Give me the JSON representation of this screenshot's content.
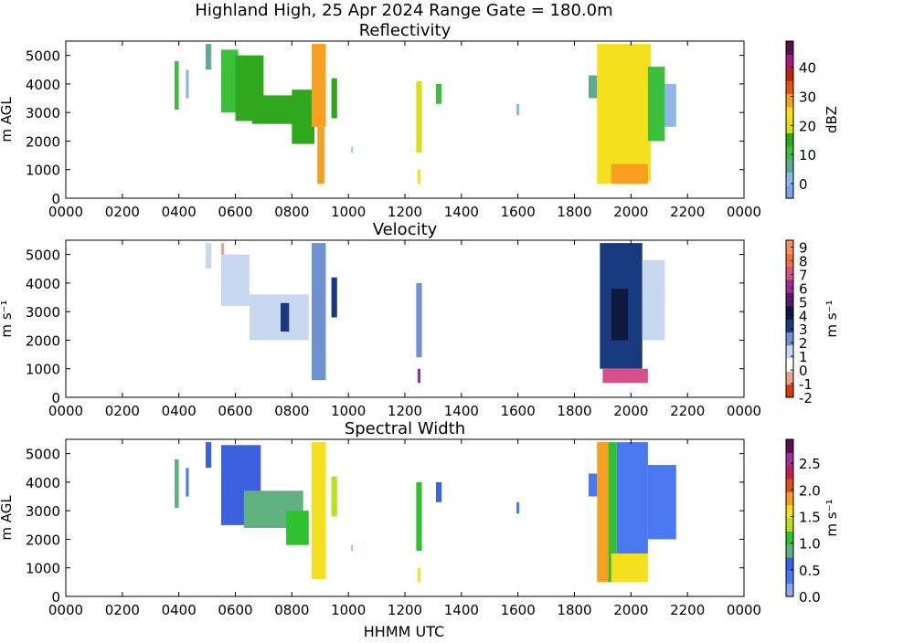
{
  "figure": {
    "suptitle": "Highland High, 25 Apr 2024 Range Gate = 180.0m",
    "xlabel": "HHMM UTC",
    "xticks": [
      "0000",
      "0200",
      "0400",
      "0600",
      "0800",
      "1000",
      "1200",
      "1400",
      "1600",
      "1800",
      "2000",
      "2200",
      "0000"
    ]
  },
  "chart_data": [
    {
      "type": "heatmap",
      "title": "Reflectivity",
      "ylabel": "m AGL",
      "xlim": [
        0,
        24
      ],
      "ylim": [
        0,
        5500
      ],
      "yticks": [
        "0",
        "1000",
        "2000",
        "3000",
        "4000",
        "5000"
      ],
      "colorbar": {
        "label": "dBZ",
        "range": [
          -5,
          49
        ],
        "ticks": [
          {
            "v": 0,
            "t": "0"
          },
          {
            "v": 10,
            "t": "10"
          },
          {
            "v": 20,
            "t": "20"
          },
          {
            "v": 30,
            "t": "30"
          },
          {
            "v": 40,
            "t": "40"
          }
        ],
        "colors": [
          "#7da3f0",
          "#8fb6e6",
          "#5fa89a",
          "#3cbf3c",
          "#2fa81e",
          "#d8e01a",
          "#f5e020",
          "#f7a020",
          "#e8501a",
          "#c02010",
          "#a01a80",
          "#5a1050"
        ]
      },
      "blobs": [
        {
          "t0": 3.85,
          "t1": 4.0,
          "h0": 3100,
          "h1": 4800,
          "v": 10
        },
        {
          "t0": 4.25,
          "t1": 4.35,
          "h0": 3500,
          "h1": 4500,
          "v": 0
        },
        {
          "t0": 4.95,
          "t1": 5.15,
          "h0": 4500,
          "h1": 5400,
          "v": 8
        },
        {
          "t0": 5.5,
          "t1": 6.1,
          "h0": 3000,
          "h1": 5200,
          "v": 12
        },
        {
          "t0": 6.0,
          "t1": 7.0,
          "h0": 2700,
          "h1": 5000,
          "v": 15
        },
        {
          "t0": 6.6,
          "t1": 8.4,
          "h0": 2600,
          "h1": 3600,
          "v": 13
        },
        {
          "t0": 8.0,
          "t1": 8.8,
          "h0": 1900,
          "h1": 3800,
          "v": 17
        },
        {
          "t0": 8.7,
          "t1": 9.2,
          "h0": 2500,
          "h1": 5400,
          "v": 30
        },
        {
          "t0": 8.9,
          "t1": 9.15,
          "h0": 500,
          "h1": 2500,
          "v": 27
        },
        {
          "t0": 9.4,
          "t1": 9.6,
          "h0": 2800,
          "h1": 4200,
          "v": 15
        },
        {
          "t0": 10.1,
          "t1": 10.15,
          "h0": 1600,
          "h1": 1800,
          "v": 0
        },
        {
          "t0": 12.4,
          "t1": 12.6,
          "h0": 1600,
          "h1": 4100,
          "v": 18
        },
        {
          "t0": 12.45,
          "t1": 12.55,
          "h0": 500,
          "h1": 1000,
          "v": 22
        },
        {
          "t0": 13.1,
          "t1": 13.3,
          "h0": 3300,
          "h1": 4000,
          "v": 10
        },
        {
          "t0": 15.95,
          "t1": 16.05,
          "h0": 2900,
          "h1": 3300,
          "v": 3
        },
        {
          "t0": 18.5,
          "t1": 18.8,
          "h0": 3500,
          "h1": 4300,
          "v": 7
        },
        {
          "t0": 18.8,
          "t1": 19.3,
          "h0": 500,
          "h1": 5400,
          "v": 26
        },
        {
          "t0": 19.2,
          "t1": 20.7,
          "h0": 600,
          "h1": 5400,
          "v": 22
        },
        {
          "t0": 19.3,
          "t1": 20.6,
          "h0": 500,
          "h1": 1200,
          "v": 28
        },
        {
          "t0": 20.6,
          "t1": 21.2,
          "h0": 2000,
          "h1": 4600,
          "v": 10
        },
        {
          "t0": 21.2,
          "t1": 21.6,
          "h0": 2500,
          "h1": 4000,
          "v": 0
        }
      ]
    },
    {
      "type": "heatmap",
      "title": "Velocity",
      "ylabel": "m s⁻¹",
      "xlim": [
        0,
        24
      ],
      "ylim": [
        0,
        5500
      ],
      "yticks": [
        "0",
        "1000",
        "2000",
        "3000",
        "4000",
        "5000"
      ],
      "colorbar": {
        "label": "m s⁻¹",
        "range": [
          -2,
          9.5
        ],
        "ticks": [
          {
            "v": -2,
            "t": "-2"
          },
          {
            "v": -1,
            "t": "-1"
          },
          {
            "v": 0,
            "t": "0"
          },
          {
            "v": 1,
            "t": "1"
          },
          {
            "v": 2,
            "t": "2"
          },
          {
            "v": 3,
            "t": "3"
          },
          {
            "v": 4,
            "t": "4"
          },
          {
            "v": 5,
            "t": "5"
          },
          {
            "v": 6,
            "t": "6"
          },
          {
            "v": 7,
            "t": "7"
          },
          {
            "v": 8,
            "t": "8"
          },
          {
            "v": 9,
            "t": "9"
          }
        ],
        "colors": [
          "#d83a10",
          "#f0a090",
          "#ffffff",
          "#c8d8f0",
          "#7090d0",
          "#1a3a80",
          "#101840",
          "#5a1a6a",
          "#a02a9a",
          "#d8508a",
          "#f07040",
          "#f89060"
        ]
      },
      "blobs": [
        {
          "t0": 3.85,
          "t1": 4.0,
          "h0": 3100,
          "h1": 4800,
          "v": 0.8
        },
        {
          "t0": 4.95,
          "t1": 5.15,
          "h0": 4500,
          "h1": 5400,
          "v": 1.2
        },
        {
          "t0": 5.5,
          "t1": 5.6,
          "h0": 4200,
          "h1": 5400,
          "v": -0.8
        },
        {
          "t0": 5.5,
          "t1": 6.5,
          "h0": 3200,
          "h1": 5000,
          "v": 1.5
        },
        {
          "t0": 6.5,
          "t1": 8.6,
          "h0": 2000,
          "h1": 3600,
          "v": 1.8
        },
        {
          "t0": 7.6,
          "t1": 7.9,
          "h0": 2300,
          "h1": 3300,
          "v": 3.5
        },
        {
          "t0": 8.7,
          "t1": 9.2,
          "h0": 600,
          "h1": 5400,
          "v": 2.5
        },
        {
          "t0": 9.4,
          "t1": 9.6,
          "h0": 2800,
          "h1": 4200,
          "v": 3
        },
        {
          "t0": 12.4,
          "t1": 12.6,
          "h0": 1400,
          "h1": 4000,
          "v": 2
        },
        {
          "t0": 12.45,
          "t1": 12.55,
          "h0": 500,
          "h1": 1000,
          "v": 6
        },
        {
          "t0": 13.1,
          "t1": 13.3,
          "h0": 3300,
          "h1": 4000,
          "v": 0.8
        },
        {
          "t0": 15.95,
          "t1": 16.05,
          "h0": 2900,
          "h1": 3300,
          "v": 0.5
        },
        {
          "t0": 18.5,
          "t1": 18.8,
          "h0": 3500,
          "h1": 4300,
          "v": 0.8
        },
        {
          "t0": 18.9,
          "t1": 20.4,
          "h0": 1000,
          "h1": 5400,
          "v": 2.8
        },
        {
          "t0": 19.3,
          "t1": 19.9,
          "h0": 2000,
          "h1": 3800,
          "v": 4
        },
        {
          "t0": 19.0,
          "t1": 20.6,
          "h0": 500,
          "h1": 1000,
          "v": 7
        },
        {
          "t0": 20.4,
          "t1": 21.2,
          "h0": 2000,
          "h1": 4800,
          "v": 1.4
        },
        {
          "t0": 21.2,
          "t1": 21.6,
          "h0": 2500,
          "h1": 4000,
          "v": 0.8
        }
      ]
    },
    {
      "type": "heatmap",
      "title": "Spectral Width",
      "ylabel": "m AGL",
      "xlim": [
        0,
        24
      ],
      "ylim": [
        0,
        5500
      ],
      "yticks": [
        "0",
        "1000",
        "2000",
        "3000",
        "4000",
        "5000"
      ],
      "colorbar": {
        "label": "m s⁻¹",
        "range": [
          0,
          2.95
        ],
        "ticks": [
          {
            "v": 0,
            "t": "0.0"
          },
          {
            "v": 0.5,
            "t": "0.5"
          },
          {
            "v": 1.0,
            "t": "1.0"
          },
          {
            "v": 1.5,
            "t": "1.5"
          },
          {
            "v": 2.0,
            "t": "2.0"
          },
          {
            "v": 2.5,
            "t": "2.5"
          }
        ],
        "colors": [
          "#8fa8f0",
          "#4a78f0",
          "#3c60e0",
          "#60b080",
          "#30c030",
          "#b8e020",
          "#f5e020",
          "#f5a020",
          "#e05010",
          "#c02050",
          "#a030a0",
          "#5a1050"
        ]
      },
      "blobs": [
        {
          "t0": 3.85,
          "t1": 4.0,
          "h0": 3100,
          "h1": 4800,
          "v": 0.8
        },
        {
          "t0": 4.25,
          "t1": 4.35,
          "h0": 3500,
          "h1": 4500,
          "v": 0.3
        },
        {
          "t0": 4.95,
          "t1": 5.15,
          "h0": 4500,
          "h1": 5400,
          "v": 0.7
        },
        {
          "t0": 5.5,
          "t1": 6.9,
          "h0": 2500,
          "h1": 5300,
          "v": 0.6
        },
        {
          "t0": 6.3,
          "t1": 8.4,
          "h0": 2400,
          "h1": 3700,
          "v": 0.9
        },
        {
          "t0": 7.8,
          "t1": 8.6,
          "h0": 1800,
          "h1": 3000,
          "v": 1.1
        },
        {
          "t0": 8.7,
          "t1": 9.2,
          "h0": 600,
          "h1": 5400,
          "v": 1.6
        },
        {
          "t0": 9.4,
          "t1": 9.6,
          "h0": 2800,
          "h1": 4200,
          "v": 1.3
        },
        {
          "t0": 10.1,
          "t1": 10.15,
          "h0": 1600,
          "h1": 1800,
          "v": 0.2
        },
        {
          "t0": 12.4,
          "t1": 12.6,
          "h0": 1600,
          "h1": 4000,
          "v": 1.0
        },
        {
          "t0": 12.45,
          "t1": 12.55,
          "h0": 500,
          "h1": 1000,
          "v": 1.7
        },
        {
          "t0": 13.1,
          "t1": 13.3,
          "h0": 3300,
          "h1": 4000,
          "v": 0.7
        },
        {
          "t0": 15.95,
          "t1": 16.05,
          "h0": 2900,
          "h1": 3300,
          "v": 0.3
        },
        {
          "t0": 18.5,
          "t1": 18.8,
          "h0": 3500,
          "h1": 4300,
          "v": 0.3
        },
        {
          "t0": 18.8,
          "t1": 19.2,
          "h0": 500,
          "h1": 5400,
          "v": 1.8
        },
        {
          "t0": 19.2,
          "t1": 19.5,
          "h0": 500,
          "h1": 5400,
          "v": 1.0
        },
        {
          "t0": 19.5,
          "t1": 20.6,
          "h0": 1500,
          "h1": 5400,
          "v": 0.4
        },
        {
          "t0": 19.3,
          "t1": 20.6,
          "h0": 500,
          "h1": 1500,
          "v": 1.5
        },
        {
          "t0": 20.6,
          "t1": 21.6,
          "h0": 2000,
          "h1": 4600,
          "v": 0.35
        }
      ]
    }
  ]
}
